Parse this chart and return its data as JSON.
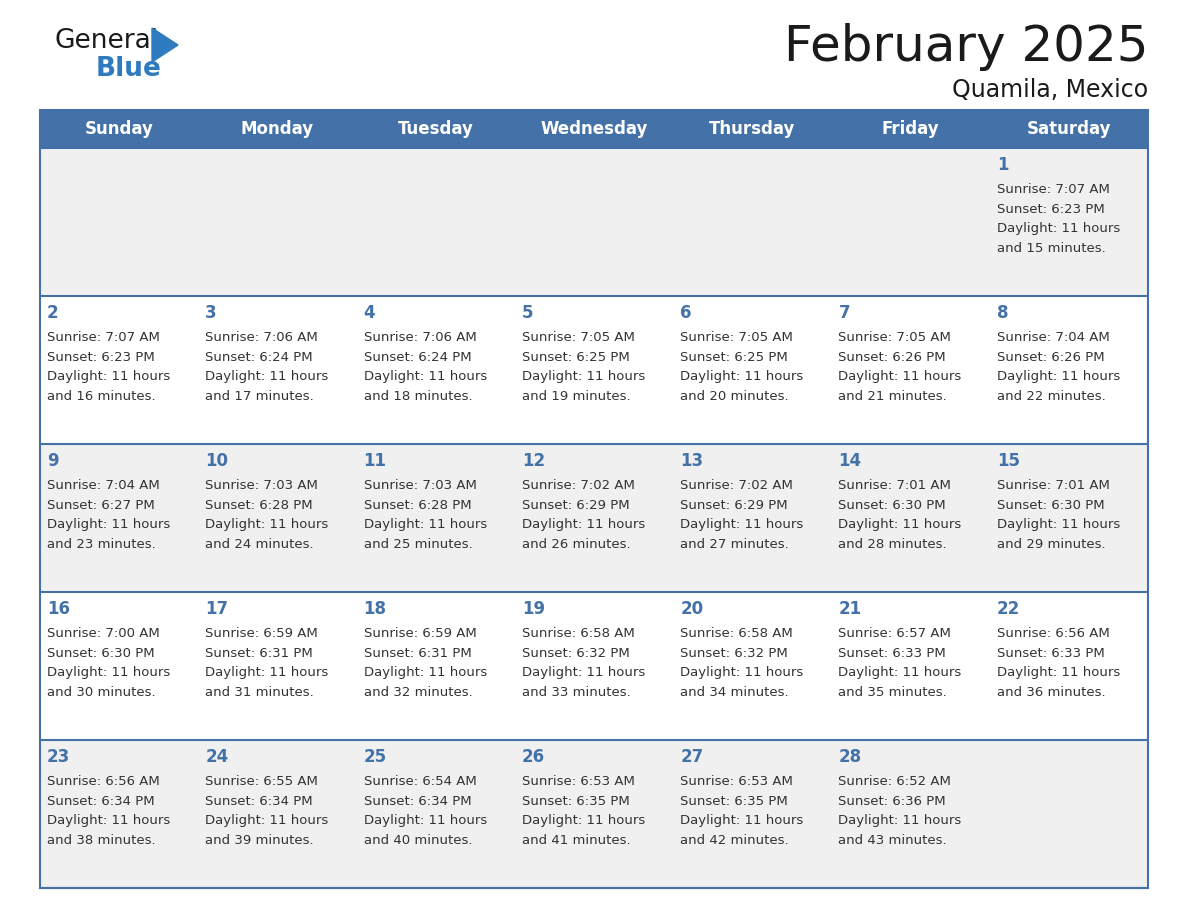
{
  "title": "February 2025",
  "subtitle": "Quamila, Mexico",
  "header_bg": "#4472a8",
  "header_text_color": "#ffffff",
  "day_headers": [
    "Sunday",
    "Monday",
    "Tuesday",
    "Wednesday",
    "Thursday",
    "Friday",
    "Saturday"
  ],
  "row_bg_odd": "#f0f0f0",
  "row_bg_even": "#ffffff",
  "border_color": "#4472a8",
  "text_color": "#333333",
  "day_num_color": "#4472a8",
  "calendar": [
    [
      null,
      null,
      null,
      null,
      null,
      null,
      {
        "day": 1,
        "sunrise": "7:07 AM",
        "sunset": "6:23 PM",
        "daylight_line1": "Daylight: 11 hours",
        "daylight_line2": "and 15 minutes."
      }
    ],
    [
      {
        "day": 2,
        "sunrise": "7:07 AM",
        "sunset": "6:23 PM",
        "daylight_line1": "Daylight: 11 hours",
        "daylight_line2": "and 16 minutes."
      },
      {
        "day": 3,
        "sunrise": "7:06 AM",
        "sunset": "6:24 PM",
        "daylight_line1": "Daylight: 11 hours",
        "daylight_line2": "and 17 minutes."
      },
      {
        "day": 4,
        "sunrise": "7:06 AM",
        "sunset": "6:24 PM",
        "daylight_line1": "Daylight: 11 hours",
        "daylight_line2": "and 18 minutes."
      },
      {
        "day": 5,
        "sunrise": "7:05 AM",
        "sunset": "6:25 PM",
        "daylight_line1": "Daylight: 11 hours",
        "daylight_line2": "and 19 minutes."
      },
      {
        "day": 6,
        "sunrise": "7:05 AM",
        "sunset": "6:25 PM",
        "daylight_line1": "Daylight: 11 hours",
        "daylight_line2": "and 20 minutes."
      },
      {
        "day": 7,
        "sunrise": "7:05 AM",
        "sunset": "6:26 PM",
        "daylight_line1": "Daylight: 11 hours",
        "daylight_line2": "and 21 minutes."
      },
      {
        "day": 8,
        "sunrise": "7:04 AM",
        "sunset": "6:26 PM",
        "daylight_line1": "Daylight: 11 hours",
        "daylight_line2": "and 22 minutes."
      }
    ],
    [
      {
        "day": 9,
        "sunrise": "7:04 AM",
        "sunset": "6:27 PM",
        "daylight_line1": "Daylight: 11 hours",
        "daylight_line2": "and 23 minutes."
      },
      {
        "day": 10,
        "sunrise": "7:03 AM",
        "sunset": "6:28 PM",
        "daylight_line1": "Daylight: 11 hours",
        "daylight_line2": "and 24 minutes."
      },
      {
        "day": 11,
        "sunrise": "7:03 AM",
        "sunset": "6:28 PM",
        "daylight_line1": "Daylight: 11 hours",
        "daylight_line2": "and 25 minutes."
      },
      {
        "day": 12,
        "sunrise": "7:02 AM",
        "sunset": "6:29 PM",
        "daylight_line1": "Daylight: 11 hours",
        "daylight_line2": "and 26 minutes."
      },
      {
        "day": 13,
        "sunrise": "7:02 AM",
        "sunset": "6:29 PM",
        "daylight_line1": "Daylight: 11 hours",
        "daylight_line2": "and 27 minutes."
      },
      {
        "day": 14,
        "sunrise": "7:01 AM",
        "sunset": "6:30 PM",
        "daylight_line1": "Daylight: 11 hours",
        "daylight_line2": "and 28 minutes."
      },
      {
        "day": 15,
        "sunrise": "7:01 AM",
        "sunset": "6:30 PM",
        "daylight_line1": "Daylight: 11 hours",
        "daylight_line2": "and 29 minutes."
      }
    ],
    [
      {
        "day": 16,
        "sunrise": "7:00 AM",
        "sunset": "6:30 PM",
        "daylight_line1": "Daylight: 11 hours",
        "daylight_line2": "and 30 minutes."
      },
      {
        "day": 17,
        "sunrise": "6:59 AM",
        "sunset": "6:31 PM",
        "daylight_line1": "Daylight: 11 hours",
        "daylight_line2": "and 31 minutes."
      },
      {
        "day": 18,
        "sunrise": "6:59 AM",
        "sunset": "6:31 PM",
        "daylight_line1": "Daylight: 11 hours",
        "daylight_line2": "and 32 minutes."
      },
      {
        "day": 19,
        "sunrise": "6:58 AM",
        "sunset": "6:32 PM",
        "daylight_line1": "Daylight: 11 hours",
        "daylight_line2": "and 33 minutes."
      },
      {
        "day": 20,
        "sunrise": "6:58 AM",
        "sunset": "6:32 PM",
        "daylight_line1": "Daylight: 11 hours",
        "daylight_line2": "and 34 minutes."
      },
      {
        "day": 21,
        "sunrise": "6:57 AM",
        "sunset": "6:33 PM",
        "daylight_line1": "Daylight: 11 hours",
        "daylight_line2": "and 35 minutes."
      },
      {
        "day": 22,
        "sunrise": "6:56 AM",
        "sunset": "6:33 PM",
        "daylight_line1": "Daylight: 11 hours",
        "daylight_line2": "and 36 minutes."
      }
    ],
    [
      {
        "day": 23,
        "sunrise": "6:56 AM",
        "sunset": "6:34 PM",
        "daylight_line1": "Daylight: 11 hours",
        "daylight_line2": "and 38 minutes."
      },
      {
        "day": 24,
        "sunrise": "6:55 AM",
        "sunset": "6:34 PM",
        "daylight_line1": "Daylight: 11 hours",
        "daylight_line2": "and 39 minutes."
      },
      {
        "day": 25,
        "sunrise": "6:54 AM",
        "sunset": "6:34 PM",
        "daylight_line1": "Daylight: 11 hours",
        "daylight_line2": "and 40 minutes."
      },
      {
        "day": 26,
        "sunrise": "6:53 AM",
        "sunset": "6:35 PM",
        "daylight_line1": "Daylight: 11 hours",
        "daylight_line2": "and 41 minutes."
      },
      {
        "day": 27,
        "sunrise": "6:53 AM",
        "sunset": "6:35 PM",
        "daylight_line1": "Daylight: 11 hours",
        "daylight_line2": "and 42 minutes."
      },
      {
        "day": 28,
        "sunrise": "6:52 AM",
        "sunset": "6:36 PM",
        "daylight_line1": "Daylight: 11 hours",
        "daylight_line2": "and 43 minutes."
      },
      null
    ]
  ]
}
